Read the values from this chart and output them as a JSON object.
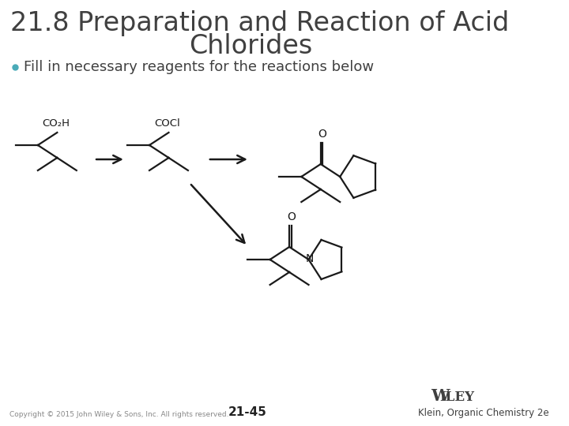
{
  "title_line1": "21.8 Preparation and Reaction of Acid",
  "title_line2": "Chlorides",
  "bullet": "Fill in necessary reagents for the reactions below",
  "bullet_color": "#4AABB8",
  "title_color": "#404040",
  "bullet_text_color": "#404040",
  "background_color": "#ffffff",
  "line_color": "#1a1a1a",
  "footer_copyright": "Copyright © 2015 John Wiley & Sons, Inc. All rights reserved.",
  "footer_page": "21-45",
  "footer_ref": "Klein, Organic Chemistry 2e",
  "wiley_color": "#404040"
}
